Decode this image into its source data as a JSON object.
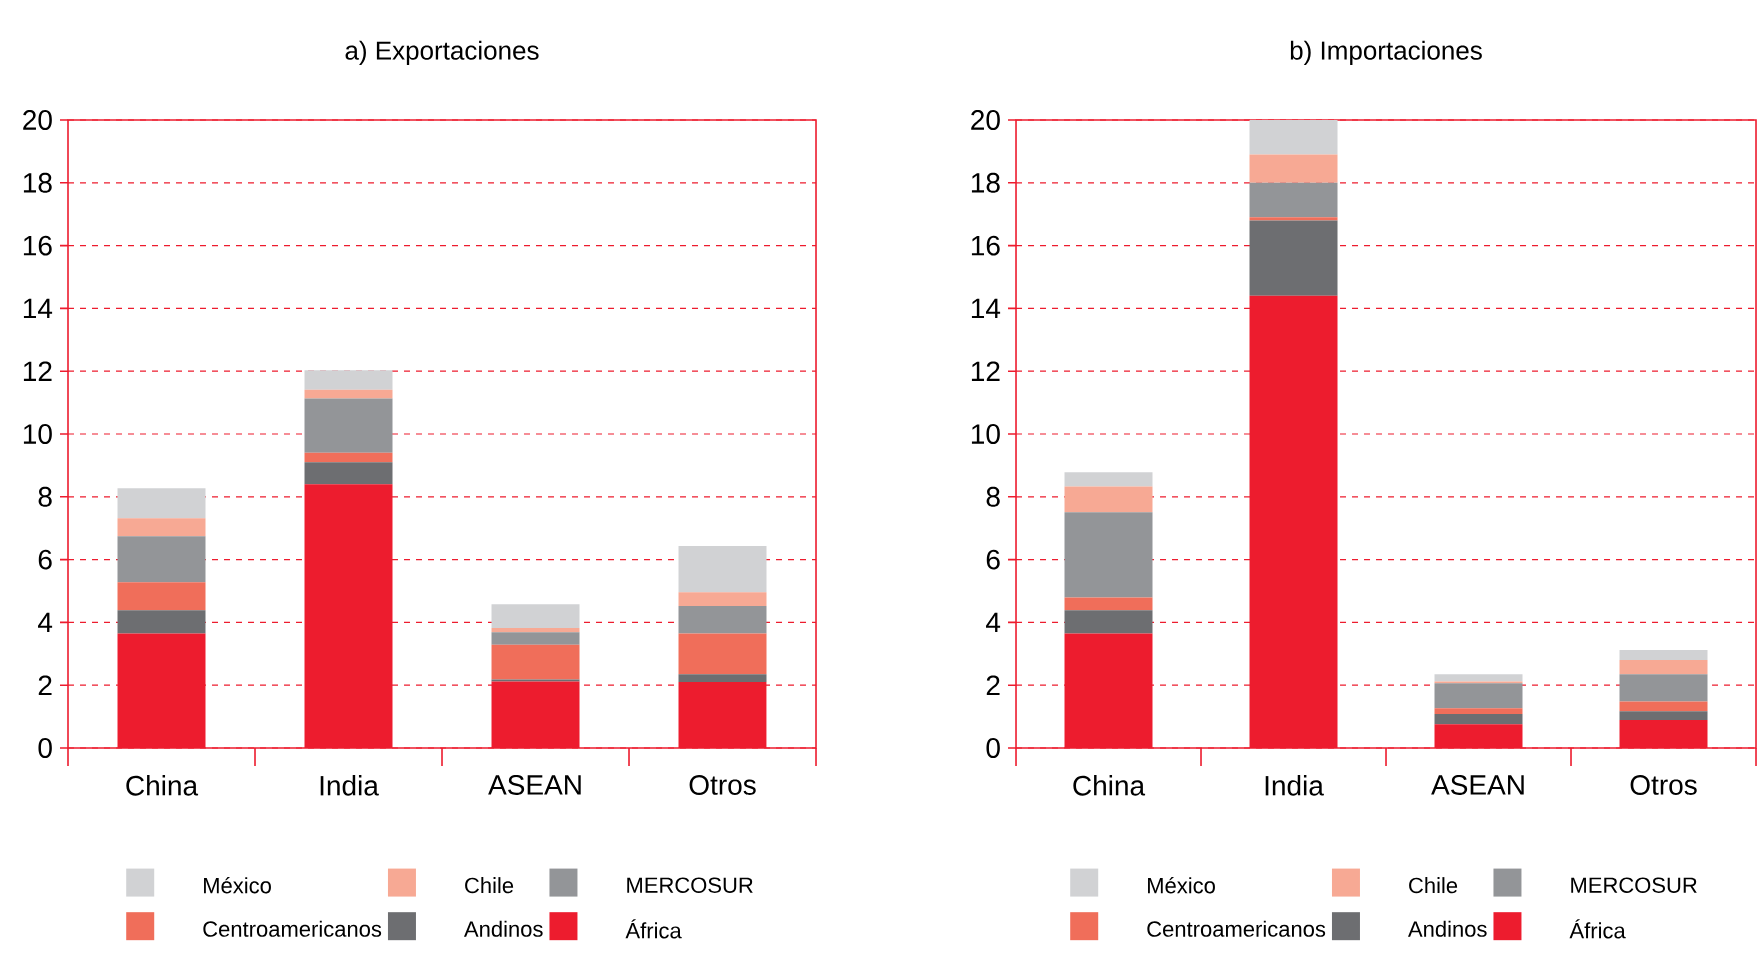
{
  "chart_data": [
    {
      "type": "bar",
      "stacked": true,
      "title": "a) Exportaciones",
      "categories": [
        "China",
        "India",
        "ASEAN",
        "Otros"
      ],
      "ylim": [
        0,
        20
      ],
      "yticks": [
        0,
        2,
        4,
        6,
        8,
        10,
        12,
        14,
        16,
        18,
        20
      ],
      "grid": "y",
      "legend": "bottom",
      "series": [
        {
          "name": "África",
          "color": "#ed1c2e",
          "values": [
            3.65,
            8.4,
            2.12,
            2.1
          ]
        },
        {
          "name": "Andinos",
          "color": "#6d6e71",
          "values": [
            0.74,
            0.7,
            0.06,
            0.25
          ]
        },
        {
          "name": "Centroamericanos",
          "color": "#f06e5a",
          "values": [
            0.89,
            0.3,
            1.11,
            1.3
          ]
        },
        {
          "name": "MERCOSUR",
          "color": "#939598",
          "values": [
            1.46,
            1.73,
            0.4,
            0.87
          ]
        },
        {
          "name": "Chile",
          "color": "#f7a994",
          "values": [
            0.58,
            0.28,
            0.13,
            0.44
          ]
        },
        {
          "name": "México",
          "color": "#d1d2d4",
          "values": [
            0.95,
            0.62,
            0.76,
            1.47
          ]
        }
      ]
    },
    {
      "type": "bar",
      "stacked": true,
      "title": "b) Importaciones",
      "categories": [
        "China",
        "India",
        "ASEAN",
        "Otros"
      ],
      "ylim": [
        0,
        20
      ],
      "yticks": [
        0,
        2,
        4,
        6,
        8,
        10,
        12,
        14,
        16,
        18,
        20
      ],
      "grid": "y",
      "legend": "bottom",
      "series": [
        {
          "name": "África",
          "color": "#ed1c2e",
          "values": [
            3.65,
            14.4,
            0.76,
            0.89
          ]
        },
        {
          "name": "Andinos",
          "color": "#6d6e71",
          "values": [
            0.74,
            2.4,
            0.32,
            0.28
          ]
        },
        {
          "name": "Centroamericanos",
          "color": "#f06e5a",
          "values": [
            0.4,
            0.1,
            0.19,
            0.31
          ]
        },
        {
          "name": "MERCOSUR",
          "color": "#939598",
          "values": [
            2.72,
            1.1,
            0.79,
            0.87
          ]
        },
        {
          "name": "Chile",
          "color": "#f7a994",
          "values": [
            0.82,
            0.9,
            0.06,
            0.45
          ]
        },
        {
          "name": "México",
          "color": "#d1d2d4",
          "values": [
            0.45,
            1.1,
            0.23,
            0.32
          ]
        }
      ]
    }
  ]
}
